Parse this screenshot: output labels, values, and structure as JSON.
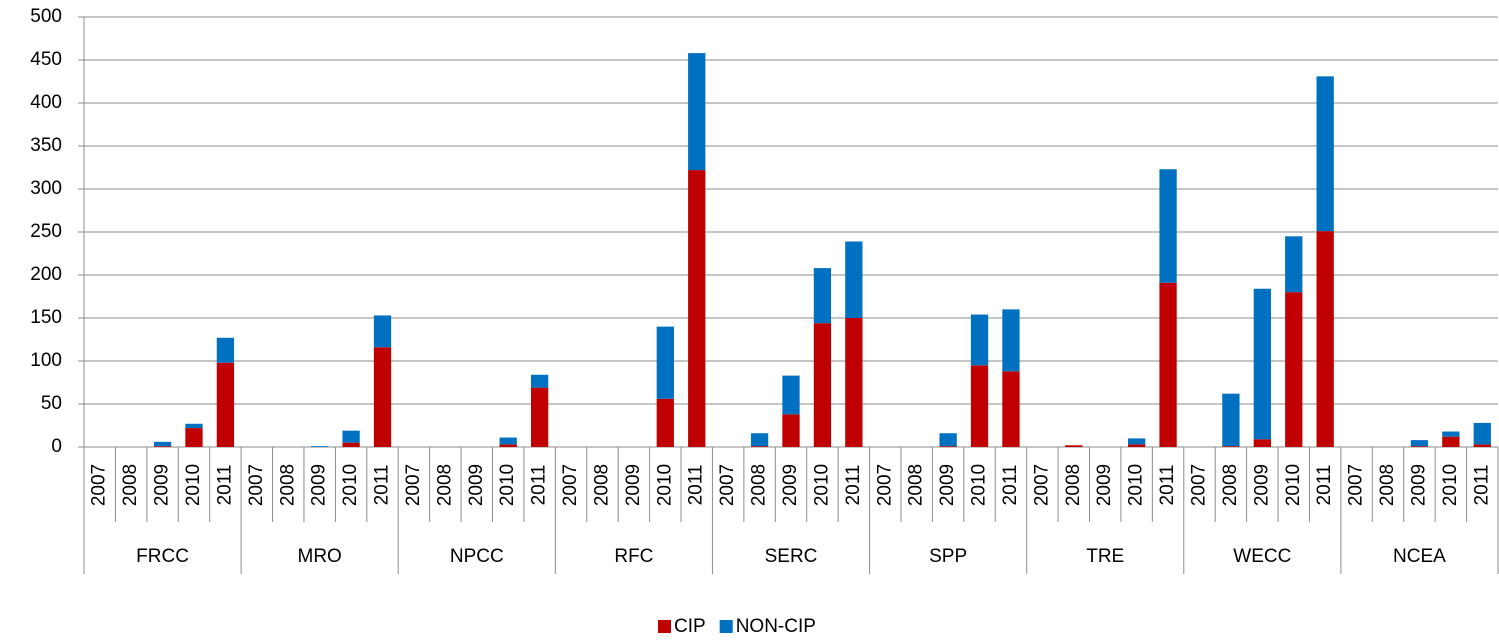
{
  "chart_data": {
    "type": "bar",
    "stacked": true,
    "groups": [
      "FRCC",
      "MRO",
      "NPCC",
      "RFC",
      "SERC",
      "SPP",
      "TRE",
      "WECC",
      "NCEA"
    ],
    "categories": [
      "2007",
      "2008",
      "2009",
      "2010",
      "2011",
      "2007",
      "2008",
      "2009",
      "2010",
      "2011",
      "2007",
      "2008",
      "2009",
      "2010",
      "2011",
      "2007",
      "2008",
      "2009",
      "2010",
      "2011",
      "2007",
      "2008",
      "2009",
      "2010",
      "2011",
      "2007",
      "2008",
      "2009",
      "2010",
      "2011",
      "2007",
      "2008",
      "2009",
      "2010",
      "2011",
      "2007",
      "2008",
      "2009",
      "2010",
      "2011",
      "2007",
      "2008",
      "2009",
      "2010",
      "2011"
    ],
    "series": [
      {
        "name": "CIP",
        "color": "#c00000",
        "values": [
          0,
          0,
          1,
          22,
          98,
          0,
          0,
          0,
          5,
          116,
          0,
          0,
          0,
          3,
          69,
          0,
          0,
          0,
          56,
          322,
          0,
          1,
          38,
          144,
          150,
          0,
          0,
          1,
          95,
          88,
          0,
          2,
          0,
          3,
          191,
          0,
          1,
          9,
          180,
          251,
          0,
          0,
          1,
          12,
          3
        ]
      },
      {
        "name": "NON-CIP",
        "color": "#0070c0",
        "values": [
          0,
          0,
          5,
          5,
          29,
          0,
          0,
          1,
          14,
          37,
          0,
          0,
          0,
          8,
          15,
          0,
          0,
          0,
          84,
          136,
          0,
          15,
          45,
          64,
          89,
          0,
          0,
          15,
          59,
          72,
          0,
          0,
          0,
          7,
          132,
          0,
          61,
          175,
          65,
          180,
          0,
          0,
          7,
          6,
          25
        ]
      }
    ],
    "ylim": [
      0,
      500
    ],
    "yticks": [
      0,
      50,
      100,
      150,
      200,
      250,
      300,
      350,
      400,
      450,
      500
    ],
    "grid": true,
    "legend": "bottom"
  }
}
